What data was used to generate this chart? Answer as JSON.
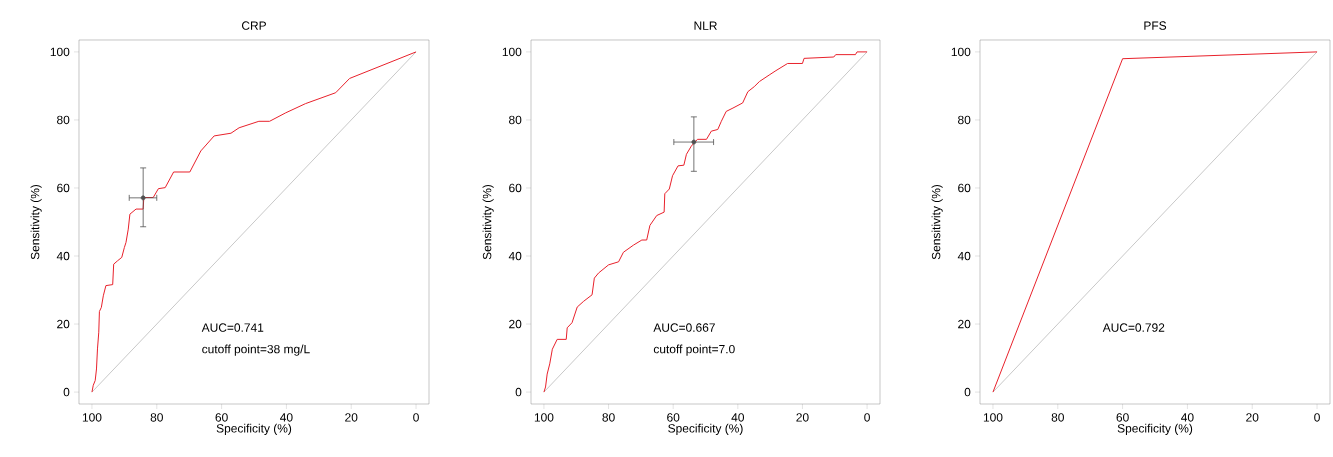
{
  "chart_data": [
    {
      "type": "line",
      "title": "CRP",
      "xlabel": "Specificity (%)",
      "ylabel": "Sensitivity (%)",
      "xlim": [
        104,
        -4
      ],
      "ylim": [
        -3.5,
        103.5
      ],
      "xticks": [
        100,
        80,
        60,
        40,
        20,
        0
      ],
      "yticks": [
        0,
        20,
        40,
        60,
        80,
        100
      ],
      "annotations": [
        "AUC=0.741",
        "cutoff point=38 mg/L"
      ],
      "series": [
        {
          "color": "#c8c8c8",
          "x": [
            100,
            0
          ],
          "values": [
            0,
            100
          ]
        },
        {
          "color": "#e8202a",
          "x": [
            100,
            99.6,
            99,
            98.6,
            98.3,
            97.9,
            97.7,
            97.1,
            96.5,
            95.7,
            93.6,
            93.3,
            92.1,
            90.8,
            90,
            89.5,
            88.8,
            88.3,
            86.4,
            84.2,
            84,
            81.1,
            79.5,
            77.4,
            74.8,
            69.8,
            66.4,
            62.3,
            57.1,
            54.6,
            48.5,
            45.2,
            40.2,
            34.1,
            24.8,
            20.5,
            0
          ],
          "values": [
            0,
            2,
            3.4,
            6.8,
            12.7,
            17.6,
            23.7,
            24.9,
            28.3,
            31.3,
            31.6,
            37.6,
            38.6,
            39.6,
            42.5,
            44,
            47.9,
            52.3,
            53.8,
            53.8,
            57.2,
            57.2,
            59.8,
            60.1,
            64.7,
            64.7,
            70.9,
            75.3,
            76.1,
            77.7,
            79.6,
            79.6,
            82.1,
            84.8,
            88,
            92.2,
            100
          ]
        },
        {
          "type": "scatter",
          "marker": "none",
          "color": "#505050",
          "x": [
            84.2
          ],
          "values": [
            57.1
          ],
          "errors": [
            [
              48.6,
              65.9
            ]
          ],
          "xerrors": [
            [
              80.0,
              88.5
            ]
          ]
        }
      ]
    },
    {
      "type": "line",
      "title": "NLR",
      "xlabel": "Specificity (%)",
      "ylabel": "Sensitivity (%)",
      "xlim": [
        104,
        -4
      ],
      "ylim": [
        -3.5,
        103.5
      ],
      "xticks": [
        100,
        80,
        60,
        40,
        20,
        0
      ],
      "yticks": [
        0,
        20,
        40,
        60,
        80,
        100
      ],
      "annotations": [
        "AUC=0.667",
        "cutoff point=7.0"
      ],
      "series": [
        {
          "color": "#c8c8c8",
          "x": [
            100,
            0
          ],
          "values": [
            0,
            100
          ]
        },
        {
          "color": "#e8202a",
          "x": [
            100,
            99.5,
            99,
            98.2,
            97.4,
            95.9,
            93.1,
            92.8,
            91.3,
            89.7,
            87.7,
            85.1,
            84.4,
            83.1,
            80,
            76.9,
            75.4,
            72.3,
            69.7,
            68.2,
            67.2,
            65.1,
            62.8,
            62.6,
            61.2,
            60.2,
            58.5,
            56.7,
            55.9,
            54.4,
            52.5,
            49.7,
            48.2,
            46.2,
            45.1,
            43.6,
            41.5,
            38.5,
            36.9,
            34.9,
            33.3,
            30.3,
            28.2,
            24.6,
            20,
            19.5,
            10.3,
            9.7,
            3.6,
            3.1,
            0
          ],
          "values": [
            0,
            1.5,
            5.3,
            8.3,
            12.6,
            15.5,
            15.5,
            18.9,
            20.4,
            25,
            26.7,
            28.6,
            33.5,
            35,
            37.4,
            38.3,
            41.1,
            43.2,
            44.7,
            44.7,
            49,
            51.9,
            52.9,
            58.3,
            59.7,
            63.6,
            66.5,
            66.7,
            69.9,
            72.3,
            74.3,
            74.3,
            76.7,
            77.2,
            79.6,
            82.5,
            83.5,
            85,
            88.3,
            89.8,
            91.3,
            93.2,
            94.5,
            96.6,
            96.6,
            98.1,
            98.5,
            99.2,
            99.2,
            100,
            100
          ]
        },
        {
          "type": "scatter",
          "marker": "none",
          "color": "#505050",
          "x": [
            53.6
          ],
          "values": [
            73.5
          ],
          "errors": [
            [
              64.9,
              80.9
            ]
          ],
          "xerrors": [
            [
              47.5,
              59.8
            ]
          ]
        }
      ]
    },
    {
      "type": "line",
      "title": "PFS",
      "xlabel": "Specificity (%)",
      "ylabel": "Sensitivity (%)",
      "xlim": [
        104,
        -4
      ],
      "ylim": [
        -3.5,
        103.5
      ],
      "xticks": [
        100,
        80,
        60,
        40,
        20,
        0
      ],
      "yticks": [
        0,
        20,
        40,
        60,
        80,
        100
      ],
      "annotations": [
        "AUC=0.792"
      ],
      "series": [
        {
          "color": "#c8c8c8",
          "x": [
            100,
            0
          ],
          "values": [
            0,
            100
          ]
        },
        {
          "color": "#e8202a",
          "x": [
            100,
            60,
            0
          ],
          "values": [
            0,
            98,
            100
          ]
        }
      ]
    }
  ]
}
